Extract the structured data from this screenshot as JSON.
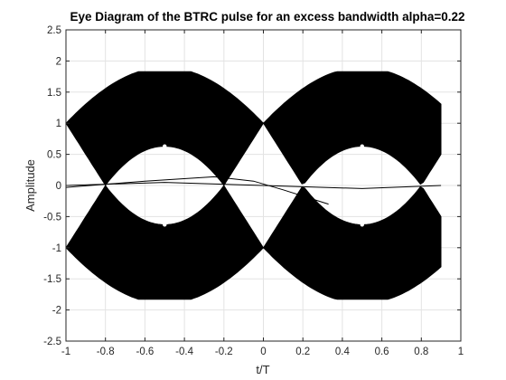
{
  "chart_data": {
    "type": "eye-diagram",
    "title": "Eye Diagram of the BTRC pulse for an excess bandwidth alpha=0.22",
    "xlabel": "t/T",
    "ylabel": "Amplitude",
    "xlim": [
      -1,
      1
    ],
    "ylim": [
      -2.5,
      2.5
    ],
    "x_ticks": [
      -1,
      -0.8,
      -0.6,
      -0.4,
      -0.2,
      0,
      0.2,
      0.4,
      0.6,
      0.8,
      1
    ],
    "x_tick_labels": [
      "-1",
      "-0.8",
      "-0.6",
      "-0.4",
      "-0.2",
      "0",
      "0.2",
      "0.4",
      "0.6",
      "0.8",
      "1"
    ],
    "y_ticks": [
      -2.5,
      -2,
      -1.5,
      -1,
      -0.5,
      0,
      0.5,
      1,
      1.5,
      2,
      2.5
    ],
    "y_tick_labels": [
      "-2.5",
      "-2",
      "-1.5",
      "-1",
      "-0.5",
      "0",
      "0.5",
      "1",
      "1.5",
      "2",
      "2.5"
    ],
    "grid": true,
    "trace_color": "#000000",
    "x_end": 0.9,
    "eyes": [
      {
        "center": -0.5,
        "outer_peak": 1.83,
        "inner_opening": 0.63
      },
      {
        "center": 0.5,
        "outer_peak": 1.83,
        "inner_opening": 0.63
      }
    ],
    "crossing_points": [
      {
        "x": -1,
        "y": 1
      },
      {
        "x": -1,
        "y": -1
      },
      {
        "x": 0,
        "y": 1
      },
      {
        "x": 0,
        "y": -1
      }
    ],
    "zero_traces": [
      {
        "x": [
          -1,
          -0.6,
          -0.25,
          -0.05,
          0.1,
          0.25,
          0.33
        ],
        "y": [
          -0.03,
          0.07,
          0.14,
          0.07,
          -0.07,
          -0.22,
          -0.3
        ]
      },
      {
        "x": [
          -1,
          -0.5,
          0,
          0.5,
          0.9
        ],
        "y": [
          0.0,
          0.05,
          0.0,
          -0.05,
          0.0
        ]
      }
    ]
  }
}
